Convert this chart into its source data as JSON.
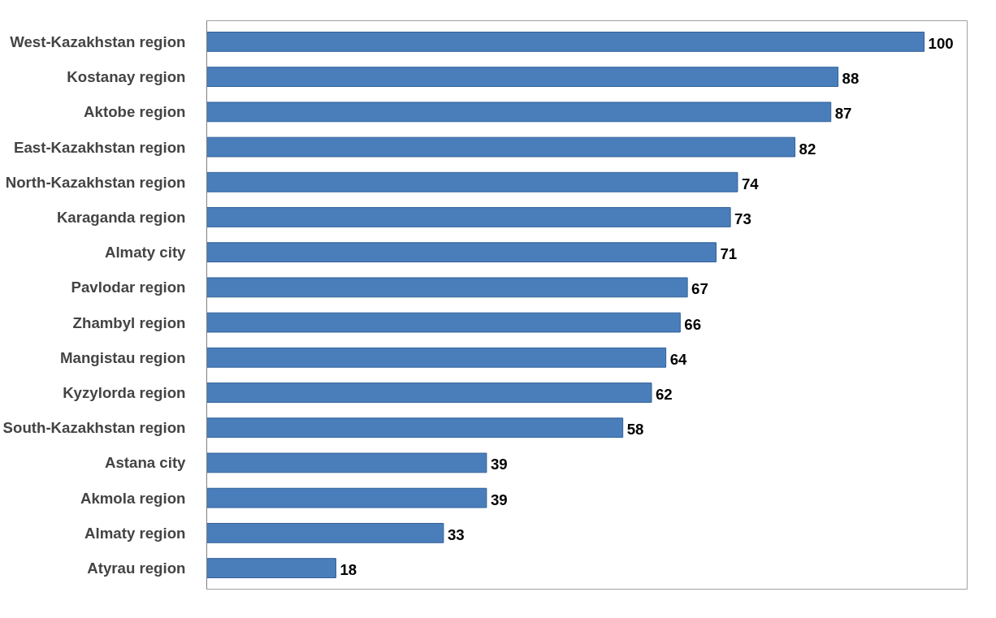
{
  "chart_data": {
    "type": "bar",
    "orientation": "horizontal",
    "color": "#4a7ebb",
    "data_labels": true,
    "categories": [
      "West-Kazakhstan region",
      "Kostanay region",
      "Aktobe region",
      "East-Kazakhstan region",
      "North-Kazakhstan region",
      "Karaganda region",
      "Almaty city",
      "Pavlodar region",
      "Zhambyl region",
      "Mangistau region",
      "Kyzylorda region",
      "South-Kazakhstan region",
      "Astana city",
      "Akmola region",
      "Almaty region",
      "Atyrau region"
    ],
    "values": [
      100,
      88,
      87,
      82,
      74,
      73,
      71,
      67,
      66,
      64,
      62,
      58,
      39,
      39,
      33,
      18
    ]
  }
}
